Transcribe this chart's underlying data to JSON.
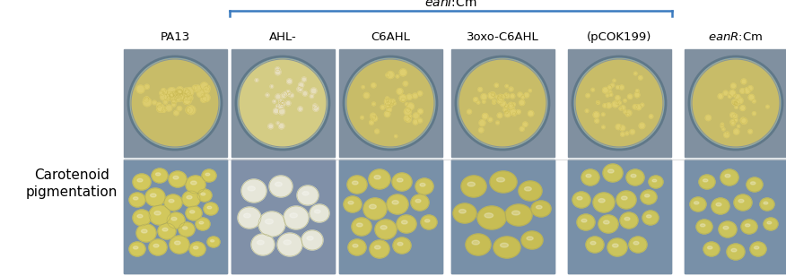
{
  "figure_bg": "#ffffff",
  "bracket_color": "#3a7abf",
  "col_labels": [
    "PA13",
    "AHL-",
    "C6AHL",
    "3oxo-C6AHL",
    "(pCOK199)",
    "eanR:Cm"
  ],
  "row_label_line1": "Carotenoid",
  "row_label_line2": "pigmentation",
  "font_size_title": 10,
  "font_size_col": 9.5,
  "font_size_row": 11,
  "panel_bg_color": "#8aa8b8",
  "agar_color": "#d8cc78",
  "colony_yellow": "#e8dc80",
  "colony_white": "#f0eeea",
  "colony_outline": "#c8bc60"
}
